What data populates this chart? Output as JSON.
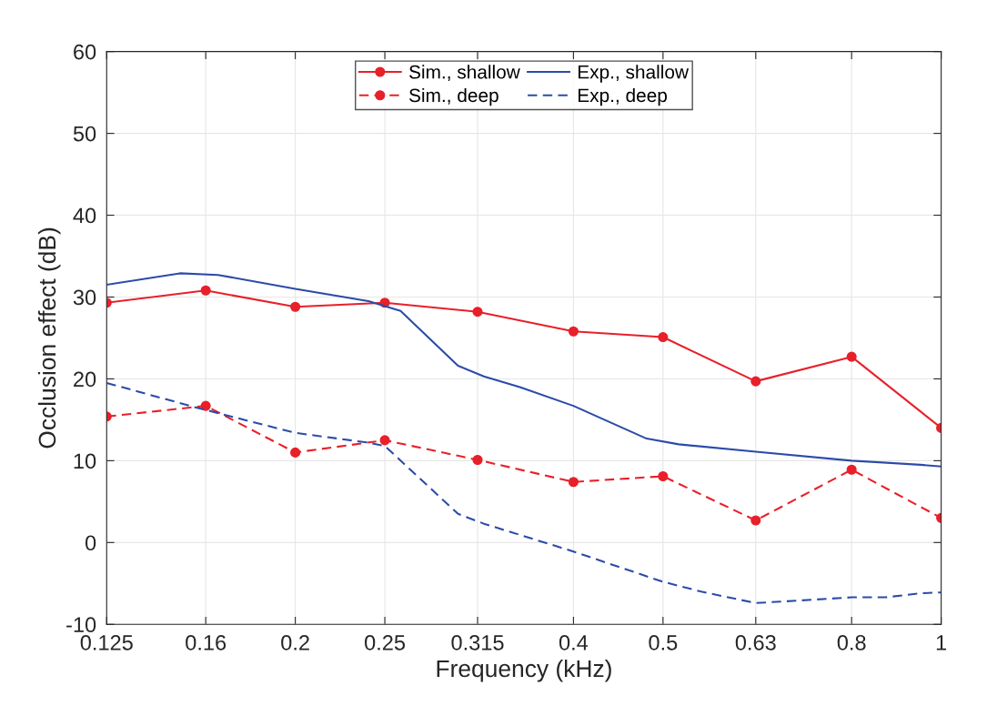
{
  "chart_data": {
    "type": "line",
    "xlabel": "Frequency (kHz)",
    "ylabel": "Occlusion effect (dB)",
    "log": "x",
    "xlim": [
      0.125,
      1
    ],
    "xticks": [
      0.125,
      0.16,
      0.2,
      0.25,
      0.315,
      0.4,
      0.5,
      0.63,
      0.8,
      1
    ],
    "ylim": [
      -10,
      60
    ],
    "yticks": [
      -10,
      0,
      10,
      20,
      30,
      40,
      50,
      60
    ],
    "grid": true,
    "legend": "top",
    "series": [
      {
        "name": "Sim., shallow",
        "color": "#e8202a",
        "marker": "circle",
        "line_style": "solid",
        "x": [
          0.125,
          0.16,
          0.2,
          0.25,
          0.315,
          0.4,
          0.5,
          0.63,
          0.8,
          1
        ],
        "values": [
          29.3,
          30.8,
          28.8,
          29.3,
          28.2,
          25.8,
          25.1,
          19.7,
          22.7,
          14.0
        ]
      },
      {
        "name": "Sim., deep",
        "color": "#e8202a",
        "marker": "circle",
        "line_style": "dashed",
        "x": [
          0.125,
          0.16,
          0.2,
          0.25,
          0.315,
          0.4,
          0.5,
          0.63,
          0.8,
          1
        ],
        "values": [
          15.4,
          16.7,
          11.0,
          12.5,
          10.1,
          7.4,
          8.1,
          2.7,
          8.9,
          3.0
        ]
      },
      {
        "name": "Exp., shallow",
        "color": "#2b4ba8",
        "marker": "none",
        "line_style": "solid",
        "x": [
          0.125,
          0.15,
          0.165,
          0.2,
          0.24,
          0.26,
          0.3,
          0.32,
          0.35,
          0.4,
          0.48,
          0.52,
          0.63,
          0.8,
          0.95,
          1
        ],
        "values": [
          31.5,
          32.9,
          32.7,
          31.0,
          29.5,
          28.3,
          21.6,
          20.3,
          19.0,
          16.7,
          12.7,
          12.0,
          11.1,
          10.0,
          9.5,
          9.3
        ]
      },
      {
        "name": "Exp., deep",
        "color": "#2b4ba8",
        "marker": "none",
        "line_style": "dashed",
        "x": [
          0.125,
          0.155,
          0.2,
          0.24,
          0.25,
          0.3,
          0.32,
          0.4,
          0.5,
          0.55,
          0.63,
          0.8,
          0.87,
          0.95,
          1
        ],
        "values": [
          19.5,
          16.6,
          13.4,
          12.2,
          11.8,
          3.5,
          2.3,
          -1.1,
          -4.8,
          -6.0,
          -7.4,
          -6.7,
          -6.7,
          -6.2,
          -6.1
        ]
      }
    ]
  }
}
